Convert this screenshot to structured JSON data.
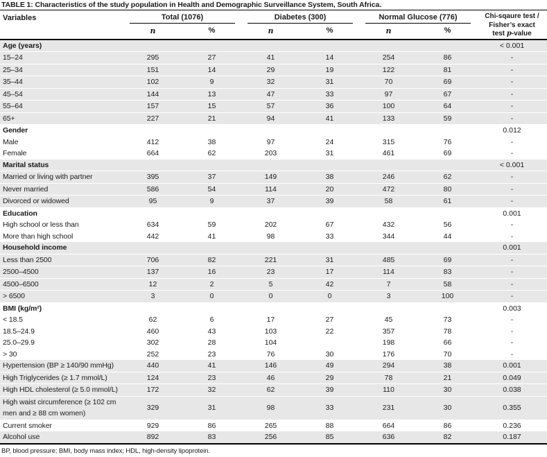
{
  "title": "TABLE 1: Characteristics of the study population in Health and Demographic Surveillance System, South Africa.",
  "footnote": "BP, blood pressure; BMI, body mass index; HDL, high-density lipoprotein.",
  "colors": {
    "row_shade": "#e7e7e7",
    "rule": "#000000",
    "text": "#1a1a1a"
  },
  "header": {
    "variables_label": "Variables",
    "groups": [
      {
        "label": "Total (1076)"
      },
      {
        "label": "Diabetes (300)"
      },
      {
        "label": "Normal Glucose (776)"
      }
    ],
    "n_label": "n",
    "pct_label": "%",
    "pvalue_lines": [
      "Chi-sqaure test /",
      "Fisher’s exact",
      "test p-value"
    ]
  },
  "rows": [
    {
      "type": "section",
      "label": "Age (years)",
      "p": "< 0.001",
      "shade": true
    },
    {
      "type": "data",
      "label": "15–24",
      "values": [
        "295",
        "27",
        "41",
        "14",
        "254",
        "86"
      ],
      "p": "-",
      "shade": true
    },
    {
      "type": "data",
      "label": "25–34",
      "values": [
        "151",
        "14",
        "29",
        "19",
        "122",
        "81"
      ],
      "p": "-",
      "shade": true
    },
    {
      "type": "data",
      "label": "35–44",
      "values": [
        "102",
        "9",
        "32",
        "31",
        "70",
        "69"
      ],
      "p": "-",
      "shade": true
    },
    {
      "type": "data",
      "label": "45–54",
      "values": [
        "144",
        "13",
        "47",
        "33",
        "97",
        "67"
      ],
      "p": "-",
      "shade": true
    },
    {
      "type": "data",
      "label": "55–64",
      "values": [
        "157",
        "15",
        "57",
        "36",
        "100",
        "64"
      ],
      "p": "-",
      "shade": true
    },
    {
      "type": "data",
      "label": "65+",
      "values": [
        "227",
        "21",
        "94",
        "41",
        "133",
        "59"
      ],
      "p": "-",
      "shade": true
    },
    {
      "type": "section",
      "label": "Gender",
      "p": "0.012",
      "shade": false
    },
    {
      "type": "data",
      "label": "Male",
      "values": [
        "412",
        "38",
        "97",
        "24",
        "315",
        "76"
      ],
      "p": "-",
      "shade": false
    },
    {
      "type": "data",
      "label": "Female",
      "values": [
        "664",
        "62",
        "203",
        "31",
        "461",
        "69"
      ],
      "p": "-",
      "shade": false
    },
    {
      "type": "section",
      "label": "Marital status",
      "p": "< 0.001",
      "shade": true
    },
    {
      "type": "data",
      "label": "Married or living with partner",
      "values": [
        "395",
        "37",
        "149",
        "38",
        "246",
        "62"
      ],
      "p": "-",
      "shade": true
    },
    {
      "type": "data",
      "label": "Never married",
      "values": [
        "586",
        "54",
        "114",
        "20",
        "472",
        "80"
      ],
      "p": "-",
      "shade": true
    },
    {
      "type": "data",
      "label": "Divorced or widowed",
      "values": [
        "95",
        "9",
        "37",
        "39",
        "58",
        "61"
      ],
      "p": "-",
      "shade": true
    },
    {
      "type": "section",
      "label": "Education",
      "p": "0.001",
      "shade": false
    },
    {
      "type": "data",
      "label": "High school or less than",
      "values": [
        "634",
        "59",
        "202",
        "67",
        "432",
        "56"
      ],
      "p": "-",
      "shade": false
    },
    {
      "type": "data",
      "label": "More than high school",
      "values": [
        "442",
        "41",
        "98",
        "33",
        "344",
        "44"
      ],
      "p": "-",
      "shade": false
    },
    {
      "type": "section",
      "label": "Household income",
      "p": "0.001",
      "shade": true
    },
    {
      "type": "data",
      "label": "Less than 2500",
      "values": [
        "706",
        "82",
        "221",
        "31",
        "485",
        "69"
      ],
      "p": "-",
      "shade": true
    },
    {
      "type": "data",
      "label": "2500–4500",
      "values": [
        "137",
        "16",
        "23",
        "17",
        "114",
        "83"
      ],
      "p": "-",
      "shade": true
    },
    {
      "type": "data",
      "label": "4500–6500",
      "values": [
        "12",
        "2",
        "5",
        "42",
        "7",
        "58"
      ],
      "p": "-",
      "shade": true
    },
    {
      "type": "data",
      "label": "> 6500",
      "values": [
        "3",
        "0",
        "0",
        "0",
        "3",
        "100"
      ],
      "p": "-",
      "shade": true
    },
    {
      "type": "section",
      "label": "BMI (kg/m²)",
      "p": "0.003",
      "shade": false
    },
    {
      "type": "data",
      "label": "< 18.5",
      "values": [
        "62",
        "6",
        "17",
        "27",
        "45",
        "73"
      ],
      "p": "-",
      "shade": false
    },
    {
      "type": "data",
      "label": "18.5–24.9",
      "values": [
        "460",
        "43",
        "103",
        "22",
        "357",
        "78"
      ],
      "p": "-",
      "shade": false
    },
    {
      "type": "data",
      "label": "25.0–29.9",
      "values": [
        "302",
        "28",
        "104",
        "",
        "198",
        "66"
      ],
      "p": "-",
      "shade": false
    },
    {
      "type": "data",
      "label": "> 30",
      "values": [
        "252",
        "23",
        "76",
        "30",
        "176",
        "70"
      ],
      "p": "-",
      "shade": false
    },
    {
      "type": "data",
      "label": "Hypertension (BP ≥ 140/90 mmHg)",
      "values": [
        "440",
        "41",
        "146",
        "49",
        "294",
        "38"
      ],
      "p": "0.001",
      "shade": true
    },
    {
      "type": "data",
      "label": "High Triglycerides (≥ 1.7 mmol/L)",
      "values": [
        "124",
        "23",
        "46",
        "29",
        "78",
        "21"
      ],
      "p": "0.049",
      "shade": true
    },
    {
      "type": "data",
      "label": "High HDL cholesterol (≥ 5.0 mmol/L)",
      "values": [
        "172",
        "32",
        "62",
        "39",
        "110",
        "30"
      ],
      "p": "0.038",
      "shade": true
    },
    {
      "type": "data",
      "label": "High waist circumference (≥ 102 cm men and ≥ 88 cm women)",
      "values": [
        "329",
        "31",
        "98",
        "33",
        "231",
        "30"
      ],
      "p": "0.355",
      "shade": true
    },
    {
      "type": "data",
      "label": "Current smoker",
      "values": [
        "929",
        "86",
        "265",
        "88",
        "664",
        "86"
      ],
      "p": "0.236",
      "shade": false
    },
    {
      "type": "data",
      "label": "Alcohol use",
      "values": [
        "892",
        "83",
        "256",
        "85",
        "636",
        "82"
      ],
      "p": "0.187",
      "shade": true
    }
  ]
}
